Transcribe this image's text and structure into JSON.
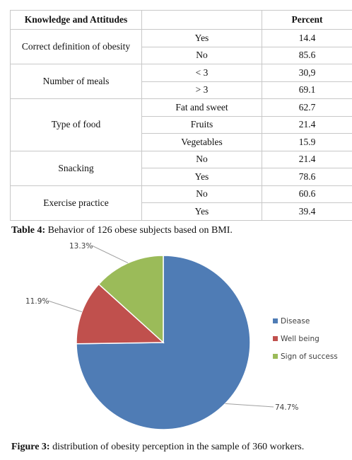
{
  "table": {
    "headers": [
      "Knowledge and Attitudes",
      "",
      "Percent"
    ],
    "groups": [
      {
        "label": "Correct definition of obesity",
        "rows": [
          {
            "option": "Yes",
            "percent": "14.4"
          },
          {
            "option": "No",
            "percent": "85.6"
          }
        ]
      },
      {
        "label": "Number of meals",
        "rows": [
          {
            "option": "< 3",
            "percent": "30,9"
          },
          {
            "option": "> 3",
            "percent": "69.1"
          }
        ]
      },
      {
        "label": "Type of food",
        "rows": [
          {
            "option": "Fat and sweet",
            "percent": "62.7"
          },
          {
            "option": "Fruits",
            "percent": "21.4"
          },
          {
            "option": "Vegetables",
            "percent": "15.9"
          }
        ]
      },
      {
        "label": "Snacking",
        "rows": [
          {
            "option": "No",
            "percent": "21.4"
          },
          {
            "option": "Yes",
            "percent": "78.6"
          }
        ]
      },
      {
        "label": "Exercise practice",
        "rows": [
          {
            "option": "No",
            "percent": "60.6"
          },
          {
            "option": "Yes",
            "percent": "39.4"
          }
        ]
      }
    ],
    "caption_label": "Table 4:",
    "caption_text": " Behavior of 126 obese subjects based on BMI."
  },
  "chart_data": {
    "type": "pie",
    "labels": [
      "Disease",
      "Well being",
      "Sign of success"
    ],
    "values": [
      74.7,
      11.9,
      13.3
    ],
    "data_labels": [
      "74.7%",
      "11.9%",
      "13.3%"
    ],
    "colors": [
      "#4f7cb5",
      "#c0504d",
      "#9bbb59"
    ],
    "legend_position": "right"
  },
  "figure": {
    "caption_label": "Figure 3:",
    "caption_text": " distribution of obesity perception in the sample of 360 workers."
  }
}
